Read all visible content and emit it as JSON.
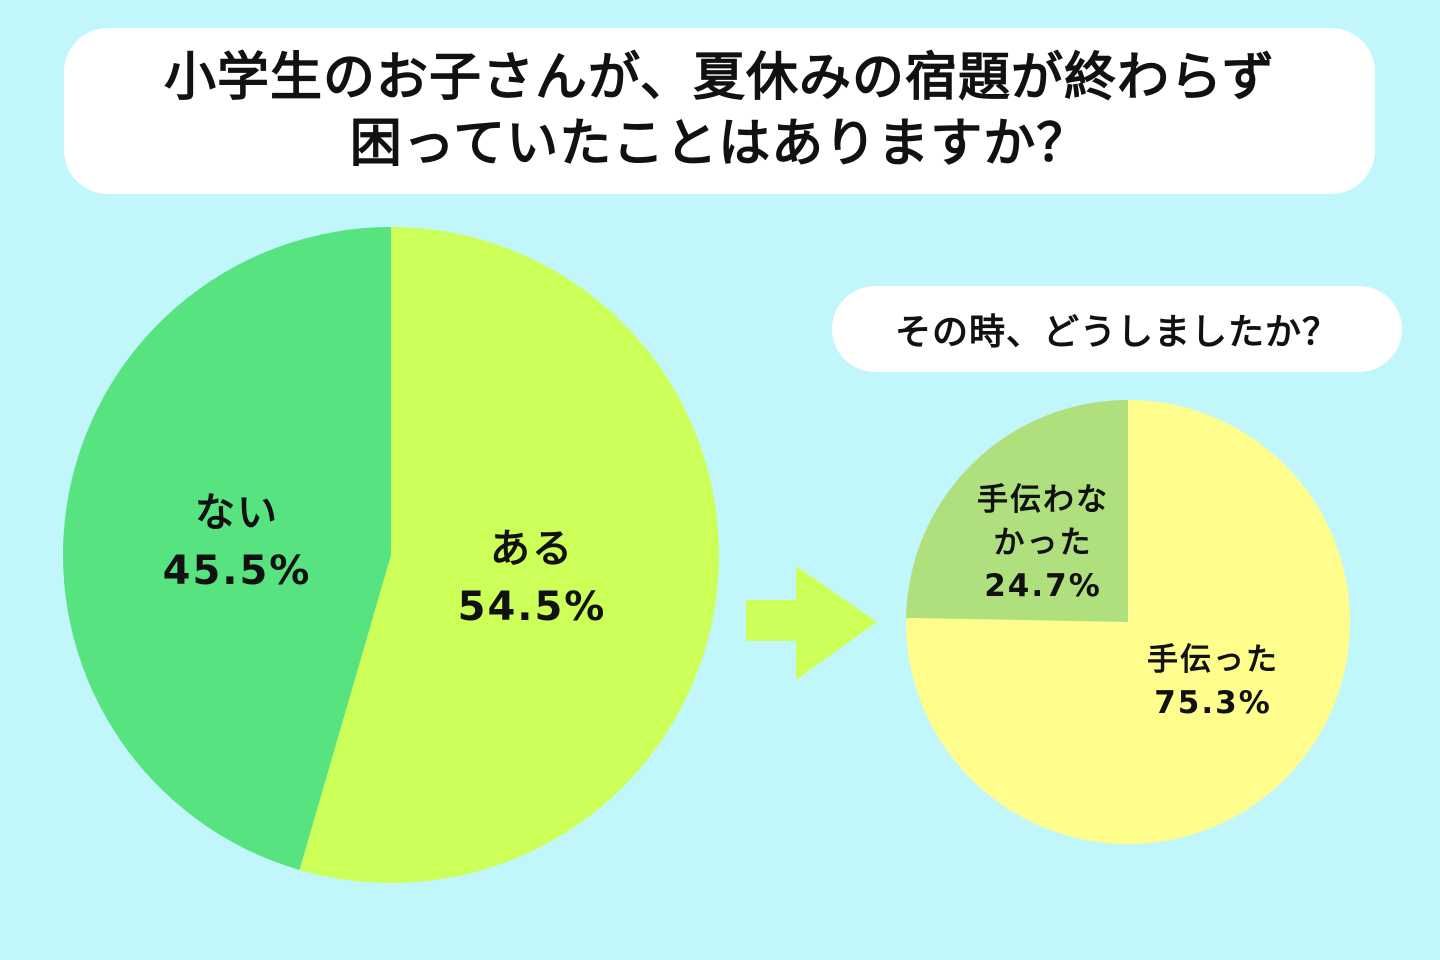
{
  "title": {
    "line1": "小学生のお子さんが、夏休みの宿題が終わらず",
    "line2": "困っていたことはありますか？"
  },
  "followup_question": "その時、どうしましたか？",
  "chart_data": [
    {
      "type": "pie",
      "title": "小学生のお子さんが、夏休みの宿題が終わらず困っていたことはありますか？",
      "slices": [
        {
          "label": "ある",
          "value": 54.5,
          "display": "54.5%",
          "color": "#ccff57"
        },
        {
          "label": "ない",
          "value": 45.5,
          "display": "45.5%",
          "color": "#56e380"
        }
      ]
    },
    {
      "type": "pie",
      "title": "その時、どうしましたか？",
      "slices": [
        {
          "label": "手伝った",
          "value": 75.3,
          "display": "75.3%",
          "color": "#fffe8c"
        },
        {
          "label": "手伝わなかった",
          "label_lines": [
            "手伝わな",
            "かった"
          ],
          "value": 24.7,
          "display": "24.7%",
          "color": "#b0e07e"
        }
      ]
    }
  ],
  "colors": {
    "background": "#c1f7fb",
    "arrow": "#ccff57",
    "text": "#111111"
  }
}
